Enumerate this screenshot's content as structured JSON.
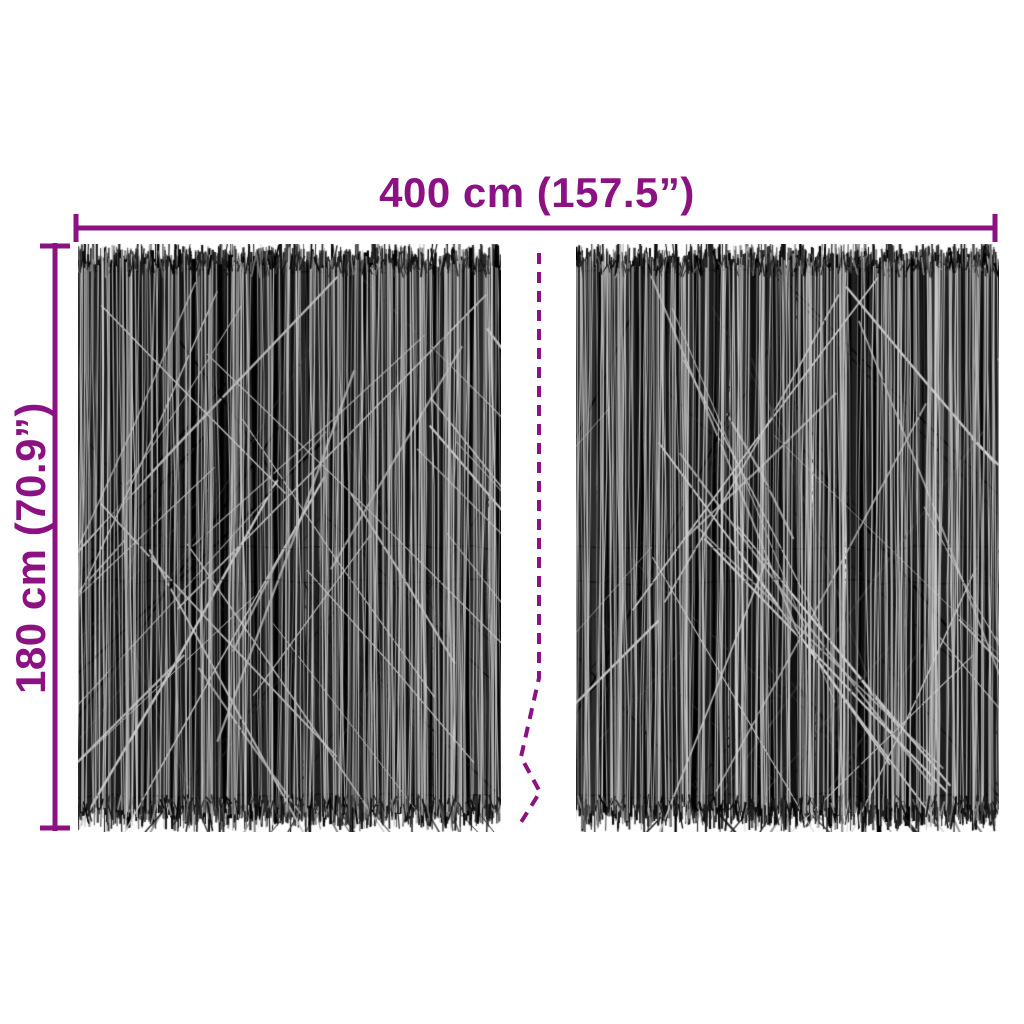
{
  "diagram": {
    "width_label": "400 cm (157.5”)",
    "height_label": "180 cm (70.9”)",
    "panels": [
      "left-fence-panel",
      "right-fence-panel"
    ],
    "break_symbol": "dashed-continuation-line"
  },
  "colors": {
    "accent": "#8C1284",
    "background": "#FFFFFF",
    "twig_blacks": [
      "#000000",
      "#101010",
      "#1f1f1f",
      "#2b2b2b"
    ],
    "twig_greys": [
      "#3f3f3f",
      "#585858",
      "#747474",
      "#8e8e8e"
    ],
    "twig_lights": [
      "#a9a9a9",
      "#c2c2c2",
      "#d5d5d5"
    ]
  }
}
